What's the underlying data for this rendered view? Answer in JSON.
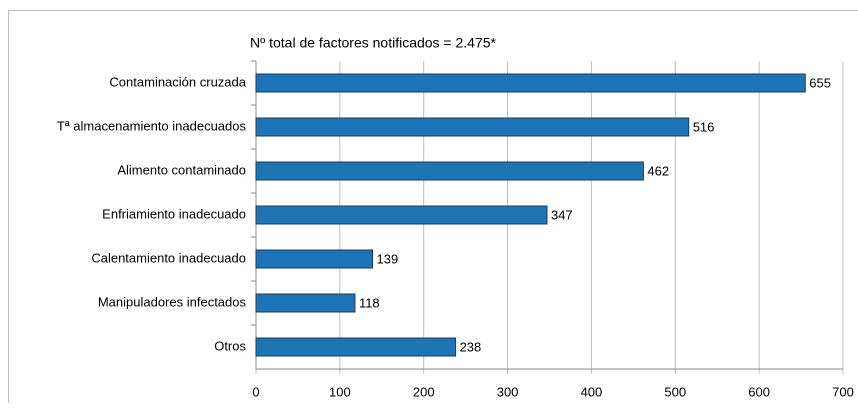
{
  "chart_data": {
    "type": "barh",
    "title": "Nº total de factores notificados = 2.475*",
    "categories": [
      "Contaminación cruzada",
      "Tª almacenamiento inadecuados",
      "Alimento contaminado",
      "Enfriamiento inadecuado",
      "Calentamiento inadecuado",
      "Manipuladores infectados",
      "Otros"
    ],
    "values": [
      655,
      516,
      462,
      347,
      139,
      118,
      238
    ],
    "color": "#1f74b6",
    "xlim": [
      0,
      700
    ],
    "xticks": [
      0,
      100,
      200,
      300,
      400,
      500,
      600,
      700
    ],
    "grid": true
  }
}
